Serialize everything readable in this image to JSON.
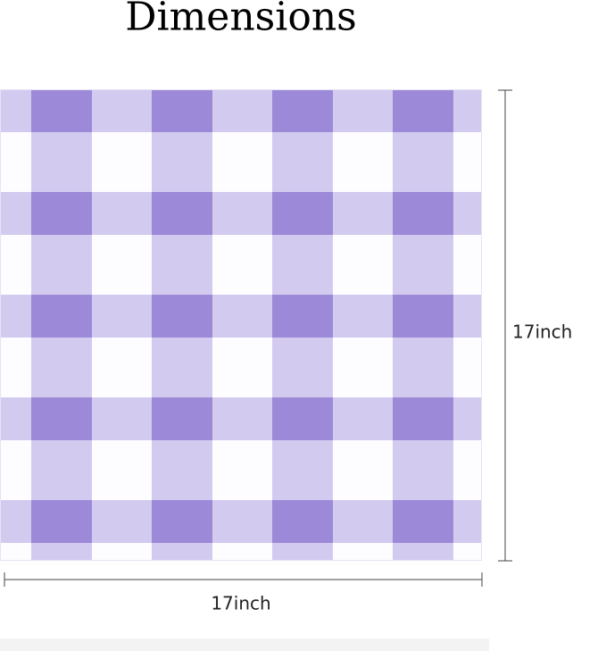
{
  "title": "Dimensions",
  "width_label": "17inch",
  "height_label": "17inch"
}
